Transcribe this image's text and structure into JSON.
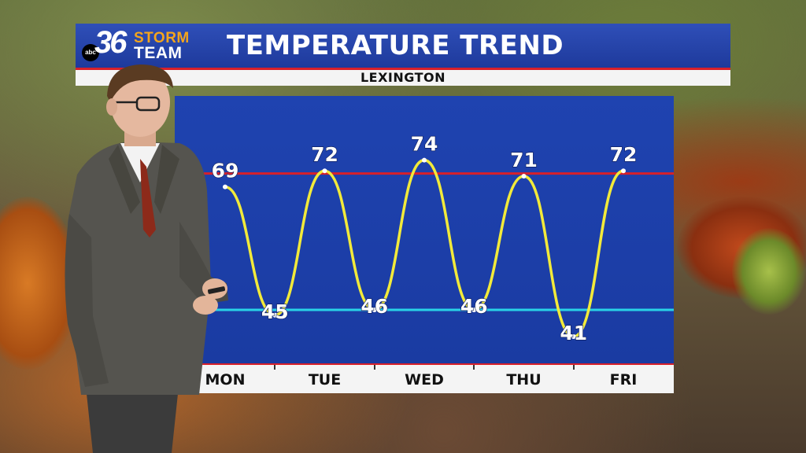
{
  "header": {
    "logo": {
      "abc": "abc",
      "number": "36",
      "storm": "STORM",
      "team": "TEAM"
    },
    "title": "TEMPERATURE TREND",
    "location": "LEXINGTON"
  },
  "colors": {
    "panel_blue": "#1e3fa8",
    "highs_line": "#d8202a",
    "lows_line": "#29d3e6",
    "curve": "#f2ea3a",
    "accent_red": "#d8202a"
  },
  "chart_data": {
    "type": "line",
    "title": "TEMPERATURE TREND",
    "subtitle": "LEXINGTON",
    "xlabel": "",
    "ylabel": "",
    "categories": [
      "MON",
      "TUE",
      "WED",
      "THU",
      "FRI"
    ],
    "x": [
      0,
      0.5,
      1,
      1.5,
      2,
      2.5,
      3,
      3.5,
      4
    ],
    "values": [
      69,
      45,
      72,
      46,
      74,
      46,
      71,
      41,
      72
    ],
    "value_labels": [
      "69",
      "45",
      "72",
      "46",
      "74",
      "46",
      "71",
      "41",
      "72"
    ],
    "reference_lines": [
      {
        "kind": "high",
        "color": "#d8202a",
        "value": 71.5
      },
      {
        "kind": "low",
        "color": "#29d3e6",
        "value": 46
      }
    ],
    "ylim": [
      36,
      86
    ],
    "grid": false,
    "legend": "none"
  }
}
